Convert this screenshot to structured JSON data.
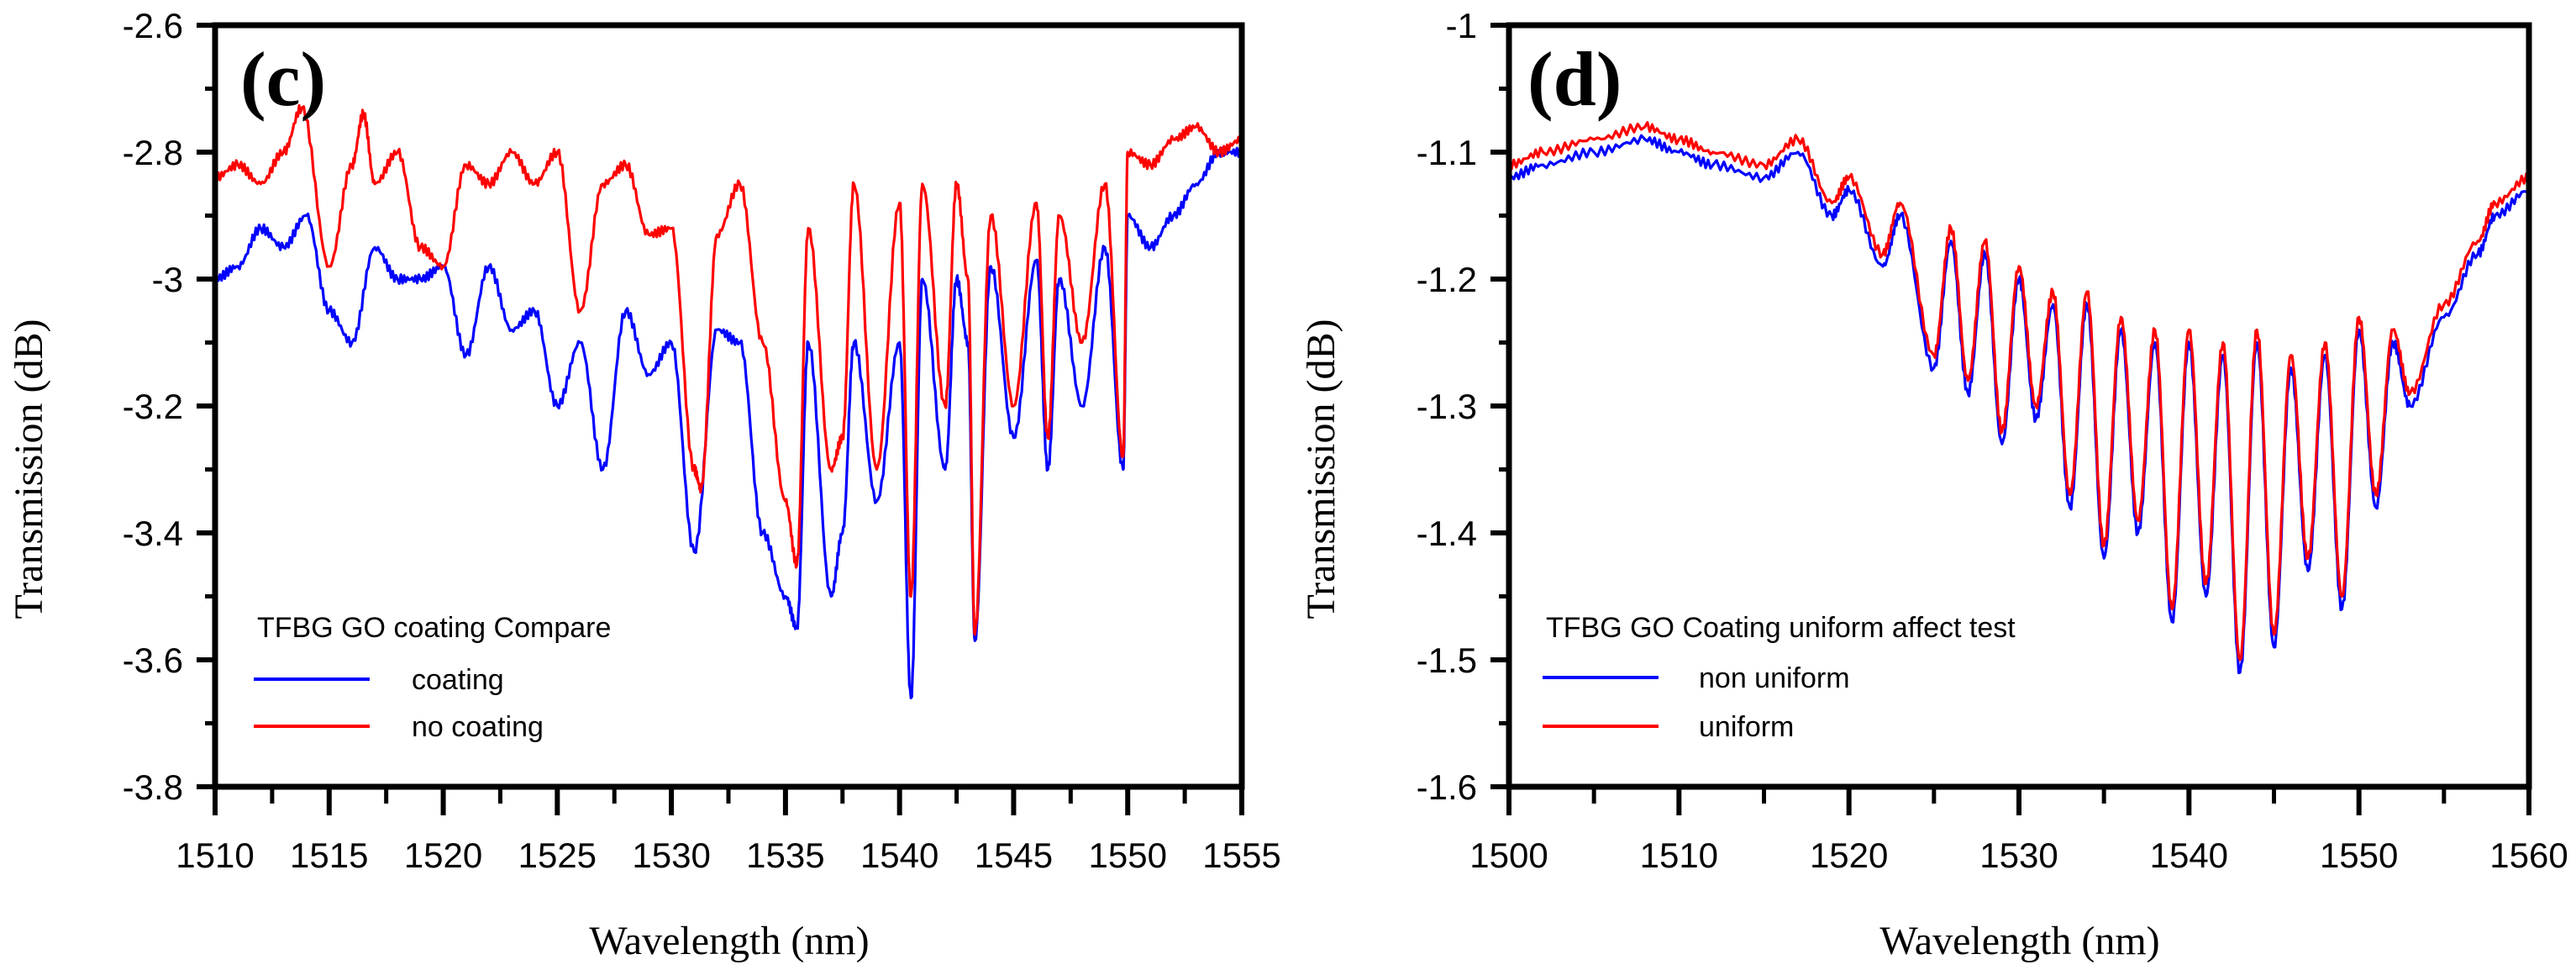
{
  "chart_data": [
    {
      "type": "line",
      "panel_label": "(c)",
      "xlabel": "Wavelength (nm)",
      "ylabel": "Transmission (dB)",
      "xlim": [
        1510,
        1555
      ],
      "ylim": [
        -3.8,
        -2.6
      ],
      "xticks": [
        1510,
        1515,
        1520,
        1525,
        1530,
        1535,
        1540,
        1545,
        1550,
        1555
      ],
      "yticks": [
        -3.8,
        -3.6,
        -3.4,
        -3.2,
        -3.0,
        -2.8,
        -2.6
      ],
      "xtick_labels": [
        "1510",
        "1515",
        "1520",
        "1525",
        "1530",
        "1535",
        "1540",
        "1545",
        "1550",
        "1555"
      ],
      "ytick_labels": [
        "-3.8",
        "-3.6",
        "-3.4",
        "-3.2",
        "-3",
        "-2.8",
        "-2.6"
      ],
      "legend_title": "TFBG GO coating Compare",
      "legend_position": "bottom-left",
      "series": [
        {
          "name": "coating",
          "color": "#0000ff",
          "x": [
            1510,
            1511,
            1512,
            1513,
            1514,
            1515,
            1516,
            1517,
            1518,
            1519,
            1520,
            1521,
            1522,
            1523,
            1524,
            1525,
            1526,
            1527,
            1528,
            1529,
            1530,
            1531,
            1532,
            1533,
            1534,
            1535,
            1535.5,
            1536,
            1537,
            1537.5,
            1538,
            1539,
            1540,
            1540.5,
            1541,
            1542,
            1542.5,
            1543,
            1543.3,
            1544,
            1545,
            1546,
            1546.5,
            1547,
            1548,
            1549,
            1549.8,
            1550,
            1551,
            1552,
            1553,
            1554,
            1555
          ],
          "y": [
            -3.0,
            -2.98,
            -2.92,
            -2.95,
            -2.9,
            -3.05,
            -3.1,
            -2.95,
            -3.0,
            -3.0,
            -2.98,
            -3.12,
            -2.98,
            -3.08,
            -3.05,
            -3.2,
            -3.1,
            -3.3,
            -3.05,
            -3.15,
            -3.1,
            -3.43,
            -3.08,
            -3.1,
            -3.4,
            -3.5,
            -3.55,
            -3.1,
            -3.5,
            -3.4,
            -3.1,
            -3.35,
            -3.1,
            -3.66,
            -3.0,
            -3.3,
            -3.0,
            -3.1,
            -3.57,
            -2.98,
            -3.25,
            -2.97,
            -3.3,
            -3.0,
            -3.2,
            -2.95,
            -3.3,
            -2.9,
            -2.95,
            -2.9,
            -2.85,
            -2.8,
            -2.8
          ]
        },
        {
          "name": "no coating",
          "color": "#ff0000",
          "x": [
            1510,
            1511,
            1512,
            1513,
            1513.8,
            1515,
            1516,
            1516.5,
            1517,
            1518,
            1519,
            1520,
            1521,
            1522,
            1523,
            1524,
            1525,
            1526,
            1527,
            1528,
            1529,
            1530,
            1531,
            1531.3,
            1532,
            1533,
            1534,
            1535,
            1535.5,
            1536,
            1537,
            1537.5,
            1538,
            1539,
            1540,
            1540.5,
            1541,
            1542,
            1542.5,
            1543,
            1543.3,
            1544,
            1545,
            1546,
            1546.5,
            1547,
            1548,
            1549,
            1549.8,
            1550,
            1551,
            1552,
            1553,
            1554,
            1555
          ],
          "y": [
            -2.84,
            -2.82,
            -2.85,
            -2.8,
            -2.73,
            -2.98,
            -2.82,
            -2.74,
            -2.85,
            -2.8,
            -2.95,
            -2.98,
            -2.82,
            -2.85,
            -2.8,
            -2.85,
            -2.8,
            -3.05,
            -2.85,
            -2.82,
            -2.93,
            -2.92,
            -3.3,
            -3.33,
            -2.93,
            -2.85,
            -3.1,
            -3.35,
            -3.45,
            -2.92,
            -3.3,
            -3.25,
            -2.85,
            -3.3,
            -2.88,
            -3.5,
            -2.85,
            -3.2,
            -2.85,
            -3.0,
            -3.56,
            -2.9,
            -3.2,
            -2.88,
            -3.25,
            -2.9,
            -3.1,
            -2.85,
            -3.28,
            -2.8,
            -2.82,
            -2.78,
            -2.76,
            -2.8,
            -2.78
          ]
        }
      ]
    },
    {
      "type": "line",
      "panel_label": "(d)",
      "xlabel": "Wavelength (nm)",
      "ylabel": "Transmission (dB)",
      "xlim": [
        1500,
        1560
      ],
      "ylim": [
        -1.6,
        -1.0
      ],
      "xticks": [
        1500,
        1510,
        1520,
        1530,
        1540,
        1550,
        1560
      ],
      "yticks": [
        -1.6,
        -1.5,
        -1.4,
        -1.3,
        -1.2,
        -1.1,
        -1.0
      ],
      "xtick_labels": [
        "1500",
        "1510",
        "1520",
        "1530",
        "1540",
        "1550",
        "1560"
      ],
      "ytick_labels": [
        "-1.6",
        "-1.5",
        "-1.4",
        "-1.3",
        "-1.2",
        "-1.1",
        "-1"
      ],
      "legend_title": "TFBG GO Coating uniform affect test",
      "legend_position": "bottom-left",
      "series": [
        {
          "name": "non uniform",
          "color": "#0000ff",
          "x": [
            1500,
            1502,
            1505,
            1508,
            1510,
            1512,
            1515,
            1517,
            1519,
            1520,
            1522,
            1523,
            1525,
            1526,
            1527,
            1528,
            1529,
            1530,
            1531,
            1532,
            1533,
            1534,
            1535,
            1536,
            1537,
            1538,
            1539,
            1540,
            1541,
            1542,
            1543,
            1544,
            1545,
            1546,
            1547,
            1548,
            1549,
            1550,
            1551,
            1552,
            1553,
            1555,
            1557,
            1558,
            1560
          ],
          "y": [
            -1.12,
            -1.11,
            -1.1,
            -1.09,
            -1.1,
            -1.11,
            -1.12,
            -1.1,
            -1.15,
            -1.13,
            -1.19,
            -1.15,
            -1.27,
            -1.17,
            -1.29,
            -1.18,
            -1.33,
            -1.2,
            -1.31,
            -1.22,
            -1.38,
            -1.22,
            -1.42,
            -1.24,
            -1.4,
            -1.25,
            -1.47,
            -1.25,
            -1.45,
            -1.26,
            -1.51,
            -1.25,
            -1.49,
            -1.27,
            -1.43,
            -1.26,
            -1.46,
            -1.24,
            -1.38,
            -1.25,
            -1.3,
            -1.23,
            -1.18,
            -1.15,
            -1.13
          ]
        },
        {
          "name": "uniform",
          "color": "#ff0000",
          "x": [
            1500,
            1502,
            1505,
            1508,
            1510,
            1512,
            1515,
            1517,
            1519,
            1520,
            1522,
            1523,
            1525,
            1526,
            1527,
            1528,
            1529,
            1530,
            1531,
            1532,
            1533,
            1534,
            1535,
            1536,
            1537,
            1538,
            1539,
            1540,
            1541,
            1542,
            1543,
            1544,
            1545,
            1546,
            1547,
            1548,
            1549,
            1550,
            1551,
            1552,
            1553,
            1555,
            1557,
            1558,
            1560
          ],
          "y": [
            -1.11,
            -1.1,
            -1.09,
            -1.08,
            -1.09,
            -1.1,
            -1.11,
            -1.09,
            -1.14,
            -1.12,
            -1.18,
            -1.14,
            -1.26,
            -1.16,
            -1.28,
            -1.17,
            -1.32,
            -1.19,
            -1.3,
            -1.21,
            -1.37,
            -1.21,
            -1.41,
            -1.23,
            -1.39,
            -1.24,
            -1.46,
            -1.24,
            -1.44,
            -1.25,
            -1.5,
            -1.24,
            -1.48,
            -1.26,
            -1.42,
            -1.25,
            -1.45,
            -1.23,
            -1.37,
            -1.24,
            -1.29,
            -1.22,
            -1.17,
            -1.14,
            -1.12
          ]
        }
      ]
    }
  ]
}
